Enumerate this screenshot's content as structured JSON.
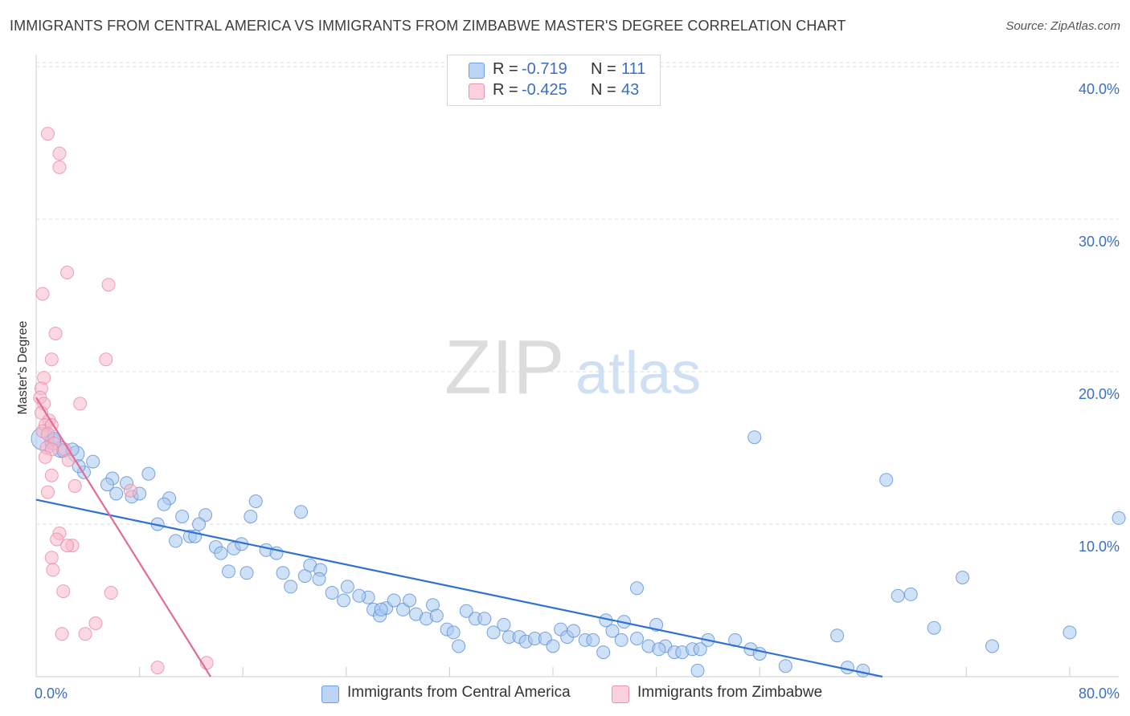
{
  "header": {
    "title": "IMMIGRANTS FROM CENTRAL AMERICA VS IMMIGRANTS FROM ZIMBABWE MASTER'S DEGREE CORRELATION CHART",
    "source": "Source: ZipAtlas.com"
  },
  "watermark": {
    "part1": "ZIP",
    "part2": "atlas"
  },
  "legend": {
    "rows": [
      {
        "r_label": "R =",
        "r_value": "-0.719",
        "n_label": "N =",
        "n_value": "111",
        "color": "#a8c8f0"
      },
      {
        "r_label": "R =",
        "r_value": "-0.425",
        "n_label": "N =",
        "n_value": "43",
        "color": "#f7b8cb"
      }
    ]
  },
  "bottom_legend": {
    "items": [
      {
        "label": "Immigrants from Central America",
        "color": "#a8c8f0"
      },
      {
        "label": "Immigrants from Zimbabwe",
        "color": "#f7b8cb"
      }
    ]
  },
  "colors": {
    "blue_fill": "#a8c8f0",
    "blue_stroke": "#5b8fd6",
    "blue_line": "#2f72d2",
    "pink_fill": "#f7b8cb",
    "pink_stroke": "#e98aa8",
    "pink_line": "#e46b94",
    "tick_text": "#3b6fc4",
    "grid": "#dddddd"
  },
  "chart_data": {
    "type": "scatter",
    "title": "IMMIGRANTS FROM CENTRAL AMERICA VS IMMIGRANTS FROM ZIMBABWE MASTER'S DEGREE CORRELATION CHART",
    "xlabel": "",
    "ylabel": "Master's Degree",
    "xlim": [
      0,
      80
    ],
    "ylim": [
      0,
      42
    ],
    "x_tick_labels": [
      "0.0%",
      "80.0%"
    ],
    "y_ticks": [
      10,
      20,
      30,
      40
    ],
    "y_tick_labels": [
      "10.0%",
      "20.0%",
      "30.0%",
      "40.0%"
    ],
    "grid": true,
    "legend_position": "top-center",
    "series": [
      {
        "name": "Immigrants from Central America",
        "r": -0.719,
        "n": 111,
        "trend": {
          "x": [
            0,
            65.5
          ],
          "y": [
            11.6,
            0
          ]
        },
        "points": [
          [
            0.5,
            15.6,
            14
          ],
          [
            1.3,
            15.4,
            10
          ],
          [
            1.9,
            14.9,
            10
          ],
          [
            2.1,
            14.8,
            8
          ],
          [
            3.1,
            14.6,
            10
          ],
          [
            4.4,
            14.1,
            8
          ],
          [
            3.7,
            13.4,
            8
          ],
          [
            5.9,
            13.0,
            8
          ],
          [
            7.0,
            12.7,
            8
          ],
          [
            8.7,
            13.3,
            8
          ],
          [
            5.5,
            12.6,
            8
          ],
          [
            6.2,
            12.0,
            8
          ],
          [
            7.4,
            11.8,
            8
          ],
          [
            8.0,
            12.0,
            8
          ],
          [
            10.3,
            11.7,
            8
          ],
          [
            9.9,
            11.3,
            8
          ],
          [
            11.3,
            10.5,
            8
          ],
          [
            13.1,
            10.6,
            8
          ],
          [
            12.6,
            10.0,
            8
          ],
          [
            9.4,
            10.0,
            8
          ],
          [
            10.8,
            8.9,
            8
          ],
          [
            11.9,
            9.2,
            8
          ],
          [
            12.3,
            9.2,
            8
          ],
          [
            17.0,
            11.5,
            8
          ],
          [
            16.6,
            10.5,
            8
          ],
          [
            20.5,
            10.8,
            8
          ],
          [
            13.9,
            8.5,
            8
          ],
          [
            14.3,
            8.1,
            8
          ],
          [
            15.3,
            8.4,
            8
          ],
          [
            15.9,
            8.7,
            8
          ],
          [
            17.8,
            8.3,
            8
          ],
          [
            18.6,
            8.1,
            8
          ],
          [
            14.9,
            6.9,
            8
          ],
          [
            16.3,
            6.8,
            8
          ],
          [
            19.1,
            6.8,
            8
          ],
          [
            19.7,
            5.9,
            8
          ],
          [
            20.8,
            6.6,
            8
          ],
          [
            21.2,
            7.3,
            8
          ],
          [
            22.0,
            7.0,
            8
          ],
          [
            21.9,
            6.4,
            8
          ],
          [
            22.9,
            5.5,
            8
          ],
          [
            23.8,
            5.0,
            8
          ],
          [
            24.1,
            5.9,
            8
          ],
          [
            25.7,
            5.2,
            8
          ],
          [
            25.0,
            5.3,
            8
          ],
          [
            26.1,
            4.4,
            8
          ],
          [
            26.6,
            4.0,
            8
          ],
          [
            27.1,
            4.5,
            8
          ],
          [
            27.7,
            5.0,
            8
          ],
          [
            28.4,
            4.4,
            8
          ],
          [
            28.9,
            5.0,
            8
          ],
          [
            29.4,
            4.1,
            8
          ],
          [
            30.2,
            3.8,
            8
          ],
          [
            30.7,
            4.7,
            8
          ],
          [
            31.0,
            4.0,
            8
          ],
          [
            31.8,
            3.1,
            8
          ],
          [
            32.3,
            2.9,
            8
          ],
          [
            32.7,
            2.0,
            8
          ],
          [
            33.3,
            4.3,
            8
          ],
          [
            34.0,
            3.8,
            8
          ],
          [
            34.7,
            3.8,
            8
          ],
          [
            35.4,
            2.9,
            8
          ],
          [
            36.2,
            3.4,
            8
          ],
          [
            36.6,
            2.6,
            8
          ],
          [
            37.4,
            2.6,
            8
          ],
          [
            37.9,
            2.3,
            8
          ],
          [
            38.6,
            2.5,
            8
          ],
          [
            39.4,
            2.5,
            8
          ],
          [
            40.0,
            2.0,
            8
          ],
          [
            40.6,
            3.1,
            8
          ],
          [
            41.1,
            2.6,
            8
          ],
          [
            41.6,
            3.0,
            8
          ],
          [
            42.5,
            2.4,
            8
          ],
          [
            43.1,
            2.4,
            8
          ],
          [
            43.9,
            1.6,
            8
          ],
          [
            44.6,
            3.0,
            8
          ],
          [
            45.3,
            2.4,
            8
          ],
          [
            45.5,
            3.6,
            8
          ],
          [
            46.5,
            2.5,
            8
          ],
          [
            47.4,
            2.0,
            8
          ],
          [
            48.0,
            3.4,
            8
          ],
          [
            48.7,
            2.0,
            8
          ],
          [
            48.2,
            1.8,
            8
          ],
          [
            49.4,
            1.6,
            8
          ],
          [
            50.0,
            1.6,
            8
          ],
          [
            50.8,
            1.8,
            8
          ],
          [
            51.4,
            1.8,
            8
          ],
          [
            52.0,
            2.4,
            8
          ],
          [
            51.2,
            0.4,
            8
          ],
          [
            54.1,
            2.4,
            8
          ],
          [
            55.3,
            1.8,
            8
          ],
          [
            56.0,
            1.5,
            8
          ],
          [
            58.0,
            0.7,
            8
          ],
          [
            62.0,
            2.7,
            8
          ],
          [
            62.8,
            0.6,
            8
          ],
          [
            64.0,
            0.4,
            8
          ],
          [
            66.7,
            5.3,
            8
          ],
          [
            67.7,
            5.4,
            8
          ],
          [
            69.5,
            3.2,
            8
          ],
          [
            71.7,
            6.5,
            8
          ],
          [
            74.0,
            2.0,
            8
          ],
          [
            80.0,
            2.9,
            8
          ],
          [
            83.8,
            10.4,
            8
          ],
          [
            55.6,
            15.7,
            8
          ],
          [
            65.8,
            12.9,
            8
          ],
          [
            46.5,
            5.8,
            8
          ],
          [
            44.1,
            3.7,
            8
          ],
          [
            3.3,
            13.8,
            8
          ],
          [
            1.4,
            15.6,
            8
          ],
          [
            2.8,
            14.9,
            8
          ],
          [
            26.7,
            4.4,
            8
          ]
        ]
      },
      {
        "name": "Immigrants from Zimbabwe",
        "r": -0.425,
        "n": 43,
        "trend": {
          "x": [
            0,
            13.5
          ],
          "y": [
            18.3,
            0
          ]
        },
        "points": [
          [
            0.9,
            35.6,
            8
          ],
          [
            1.8,
            34.3,
            8
          ],
          [
            1.8,
            33.4,
            8
          ],
          [
            2.4,
            26.5,
            8
          ],
          [
            5.6,
            25.7,
            8
          ],
          [
            0.5,
            25.1,
            8
          ],
          [
            1.5,
            22.5,
            8
          ],
          [
            1.2,
            20.8,
            8
          ],
          [
            5.4,
            20.8,
            8
          ],
          [
            0.6,
            19.6,
            8
          ],
          [
            0.4,
            18.9,
            8
          ],
          [
            0.3,
            18.3,
            8
          ],
          [
            3.4,
            17.9,
            8
          ],
          [
            0.6,
            17.9,
            8
          ],
          [
            0.4,
            17.3,
            8
          ],
          [
            1.0,
            16.8,
            8
          ],
          [
            0.7,
            16.5,
            8
          ],
          [
            0.5,
            16.1,
            8
          ],
          [
            1.2,
            16.5,
            8
          ],
          [
            0.9,
            15.9,
            8
          ],
          [
            1.4,
            15.3,
            8
          ],
          [
            0.8,
            15.0,
            8
          ],
          [
            1.2,
            14.9,
            8
          ],
          [
            2.2,
            14.9,
            8
          ],
          [
            0.7,
            14.4,
            8
          ],
          [
            2.5,
            14.2,
            8
          ],
          [
            1.2,
            13.2,
            8
          ],
          [
            3.0,
            12.5,
            8
          ],
          [
            0.9,
            12.1,
            8
          ],
          [
            7.3,
            12.2,
            8
          ],
          [
            1.8,
            9.4,
            8
          ],
          [
            1.6,
            9.0,
            8
          ],
          [
            2.8,
            8.6,
            8
          ],
          [
            2.4,
            8.6,
            8
          ],
          [
            1.2,
            7.8,
            8
          ],
          [
            1.3,
            7.0,
            8
          ],
          [
            2.1,
            5.6,
            8
          ],
          [
            5.8,
            5.5,
            8
          ],
          [
            4.6,
            3.5,
            8
          ],
          [
            3.8,
            2.8,
            8
          ],
          [
            2.0,
            2.8,
            8
          ],
          [
            9.4,
            0.6,
            8
          ],
          [
            13.2,
            0.9,
            8
          ]
        ]
      }
    ]
  }
}
